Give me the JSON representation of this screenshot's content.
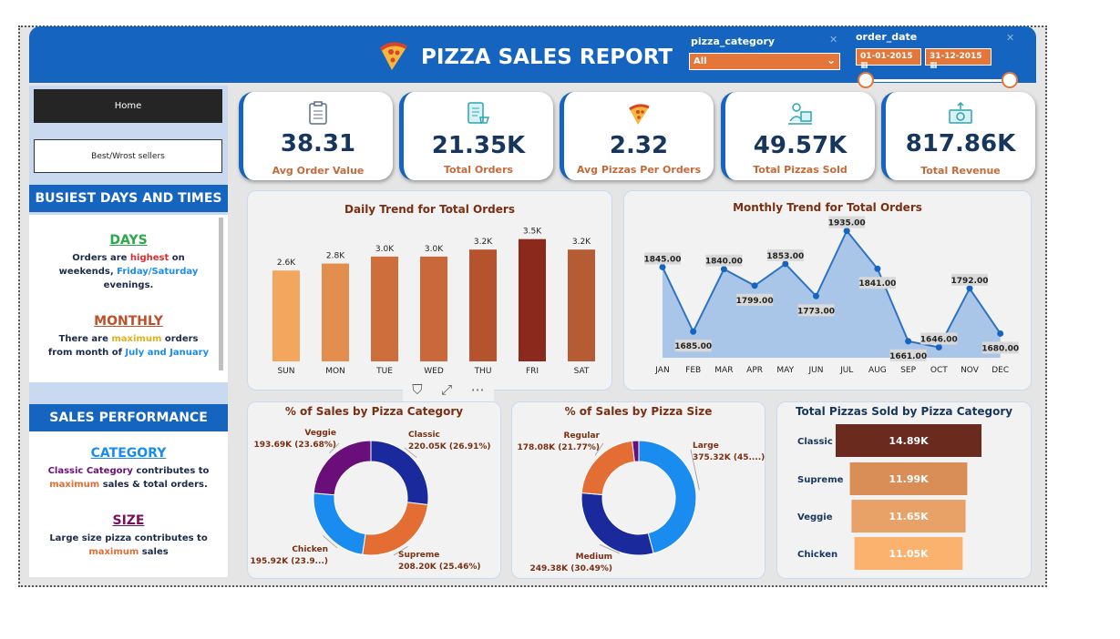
{
  "header": {
    "title": "PIZZA SALES REPORT",
    "category_slicer": {
      "label": "pizza_category",
      "selected": "All"
    },
    "date_slicer": {
      "label": "order_date",
      "start": "01-01-2015",
      "end": "31-12-2015"
    }
  },
  "nav": {
    "home": "Home",
    "best_worst": "Best/Wrost sellers"
  },
  "busiest": {
    "heading": "BUSIEST DAYS AND TIMES",
    "days_title": "DAYS",
    "days_text1": "Orders are ",
    "days_highlight1": "highest",
    "days_text2": " on weekends, ",
    "days_highlight2": "Friday/Saturday",
    "days_text3": " evenings.",
    "monthly_title": "MONTHLY",
    "monthly_text1": "There  are ",
    "monthly_highlight1": "maximum",
    "monthly_text2": " orders from month of ",
    "monthly_highlight2": "July and January"
  },
  "performance": {
    "heading": "SALES PERFORMANCE",
    "category_title": "CATEGORY",
    "category_highlight1": "Classic Category",
    "category_text1": " contributes to ",
    "category_highlight2": "maximum",
    "category_text2": " sales & total orders.",
    "size_title": "SIZE",
    "size_text1": "Large size pizza contributes to ",
    "size_highlight": "maximum",
    "size_text2": " sales"
  },
  "kpis": [
    {
      "value": "38.31",
      "label": "Avg Order Value",
      "icon": "clipboard-icon"
    },
    {
      "value": "21.35K",
      "label": "Total Orders",
      "icon": "order-list-icon"
    },
    {
      "value": "2.32",
      "label": "Avg Pizzas Per Orders",
      "icon": "pizza-slice-icon"
    },
    {
      "value": "49.57K",
      "label": "Total Pizzas Sold",
      "icon": "delivery-icon"
    },
    {
      "value": "817.86K",
      "label": "Total Revenue",
      "icon": "money-icon"
    }
  ],
  "colors": {
    "brand_blue": "#1464c0",
    "accent_orange": "#e5763a",
    "kpi_text": "#17365d",
    "title_brown": "#7a2f12"
  },
  "chart_data": [
    {
      "type": "bar",
      "title": "Daily Trend for Total Orders",
      "categories": [
        "SUN",
        "MON",
        "TUE",
        "WED",
        "THU",
        "FRI",
        "SAT"
      ],
      "values": [
        2.6,
        2.8,
        3.0,
        3.0,
        3.2,
        3.5,
        3.2
      ],
      "labels": [
        "2.6K",
        "2.8K",
        "3.0K",
        "3.0K",
        "3.2K",
        "3.5K",
        "3.2K"
      ],
      "colors": [
        "#f2a65e",
        "#e38e4e",
        "#cd6e3c",
        "#c9683a",
        "#b5532e",
        "#8b2a1c",
        "#b55c35"
      ],
      "ylim": [
        0,
        3.7
      ]
    },
    {
      "type": "area",
      "title": "Monthly Trend for Total Orders",
      "categories": [
        "JAN",
        "FEB",
        "MAR",
        "APR",
        "MAY",
        "JUN",
        "JUL",
        "AUG",
        "SEP",
        "OCT",
        "NOV",
        "DEC"
      ],
      "values": [
        1845,
        1685,
        1840,
        1799,
        1853,
        1773,
        1935,
        1841,
        1661,
        1646,
        1792,
        1680
      ],
      "labels": [
        "1845.00",
        "1685.00",
        "1840.00",
        "1799.00",
        "1853.00",
        "1773.00",
        "1935.00",
        "1841.00",
        "1661.00",
        "1646.00",
        "1792.00",
        "1680.00"
      ],
      "ylim": [
        1620,
        1950
      ]
    },
    {
      "type": "pie",
      "title": "% of Sales by Pizza Category",
      "slices": [
        {
          "name": "Classic",
          "value": 26.91,
          "label": "220.05K (26.91%)",
          "color": "#1a2a9c"
        },
        {
          "name": "Supreme",
          "value": 25.46,
          "label": "208.20K (25.46%)",
          "color": "#e36d32"
        },
        {
          "name": "Chicken",
          "value": 23.95,
          "label": "195.92K (23.9...)",
          "color": "#1a8cf0"
        },
        {
          "name": "Veggie",
          "value": 23.68,
          "label": "193.69K (23.68%)",
          "color": "#6a0f7a"
        }
      ]
    },
    {
      "type": "pie",
      "title": "% of Sales by Pizza Size",
      "slices": [
        {
          "name": "Large",
          "value": 45.89,
          "label": "375.32K (45....)",
          "color": "#1a8cf0"
        },
        {
          "name": "Medium",
          "value": 30.49,
          "label": "249.38K (30.49%)",
          "color": "#1a2a9c"
        },
        {
          "name": "Regular",
          "value": 21.77,
          "label": "178.08K (21.77%)",
          "color": "#e36d32"
        },
        {
          "name": "",
          "value": 1.85,
          "label": "",
          "color": "#6a0f7a"
        }
      ]
    },
    {
      "type": "bar",
      "title": "Total Pizzas Sold by Pizza Category",
      "categories": [
        "Classic",
        "Supreme",
        "Veggie",
        "Chicken"
      ],
      "values": [
        14.89,
        11.99,
        11.65,
        11.05
      ],
      "labels": [
        "14.89K",
        "11.99K",
        "11.65K",
        "11.05K"
      ],
      "colors": [
        "#6b2a1e",
        "#d98e57",
        "#e8a267",
        "#fbb26e"
      ]
    }
  ]
}
